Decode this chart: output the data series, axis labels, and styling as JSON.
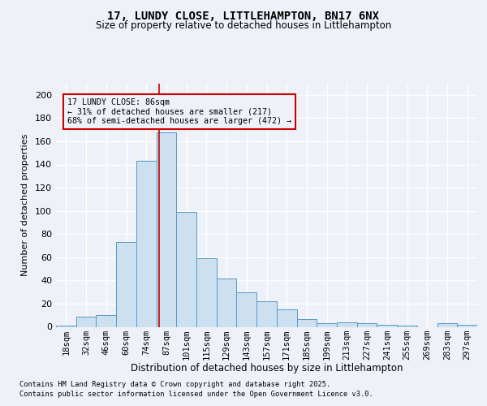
{
  "title1": "17, LUNDY CLOSE, LITTLEHAMPTON, BN17 6NX",
  "title2": "Size of property relative to detached houses in Littlehampton",
  "xlabel": "Distribution of detached houses by size in Littlehampton",
  "ylabel": "Number of detached properties",
  "bar_labels": [
    "18sqm",
    "32sqm",
    "46sqm",
    "60sqm",
    "74sqm",
    "87sqm",
    "101sqm",
    "115sqm",
    "129sqm",
    "143sqm",
    "157sqm",
    "171sqm",
    "185sqm",
    "199sqm",
    "213sqm",
    "227sqm",
    "241sqm",
    "255sqm",
    "269sqm",
    "283sqm",
    "297sqm"
  ],
  "bar_values": [
    1,
    9,
    10,
    73,
    143,
    168,
    99,
    59,
    42,
    30,
    22,
    15,
    7,
    3,
    4,
    3,
    2,
    1,
    0,
    3,
    2
  ],
  "bar_color": "#cce0f0",
  "bar_edge_color": "#5599cc",
  "annotation_line1": "17 LUNDY CLOSE: 86sqm",
  "annotation_line2": "← 31% of detached houses are smaller (217)",
  "annotation_line3": "68% of semi-detached houses are larger (472) →",
  "annotation_box_color": "#cc0000",
  "vline_x_index": 4.65,
  "footer1": "Contains HM Land Registry data © Crown copyright and database right 2025.",
  "footer2": "Contains public sector information licensed under the Open Government Licence v3.0.",
  "bg_color": "#eef2f8",
  "ylim": [
    0,
    210
  ],
  "yticks": [
    0,
    20,
    40,
    60,
    80,
    100,
    120,
    140,
    160,
    180,
    200
  ]
}
